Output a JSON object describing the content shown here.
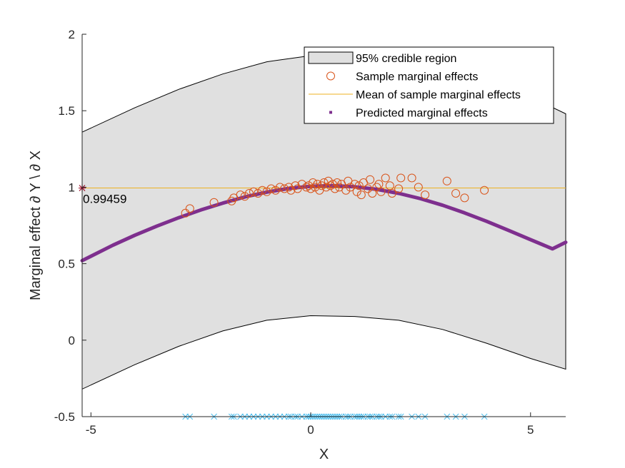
{
  "chart_data": {
    "type": "scatter",
    "xlabel": "X",
    "ylabel": "Marginal effect ∂ Y \\ ∂ X",
    "xlim": [
      -5.2,
      5.8
    ],
    "ylim": [
      -0.5,
      2
    ],
    "xticks": [
      -5,
      0,
      5
    ],
    "xtick_labels": [
      "-5",
      "0",
      "5"
    ],
    "yticks": [
      -0.5,
      0,
      0.5,
      1,
      1.5,
      2
    ],
    "ytick_labels": [
      "-0.5",
      "0",
      "0.5",
      "1",
      "1.5",
      "2"
    ],
    "grid": false,
    "legend_position": "top-right",
    "legend": [
      "95% credible region",
      "Sample marginal effects",
      "Mean of sample marginal effects",
      "Predicted marginal effects"
    ],
    "colors": {
      "region_fill": "#e0e0e0",
      "region_edge": "#000000",
      "sample": "#d95319",
      "mean": "#edb120",
      "predicted": "#7e2f8e",
      "rug": "#4dbeee",
      "annotation_marker": "#a2142f",
      "axis": "#262626"
    },
    "credible_region": {
      "x": [
        -5.2,
        -4,
        -3,
        -2,
        -1,
        0,
        1,
        2,
        3,
        4,
        5,
        5.8
      ],
      "upper": [
        1.36,
        1.52,
        1.64,
        1.74,
        1.82,
        1.86,
        1.87,
        1.85,
        1.8,
        1.71,
        1.59,
        1.48
      ],
      "lower": [
        -0.32,
        -0.16,
        -0.04,
        0.06,
        0.13,
        0.16,
        0.155,
        0.13,
        0.07,
        -0.02,
        -0.12,
        -0.19
      ]
    },
    "predicted": {
      "x": [
        -5.2,
        -4.5,
        -4,
        -3.5,
        -3,
        -2.5,
        -2,
        -1.5,
        -1,
        -0.5,
        0,
        0.5,
        1,
        1.5,
        2,
        2.5,
        3,
        3.5,
        4,
        4.5,
        5,
        5.5,
        5.8
      ],
      "y": [
        0.52,
        0.621,
        0.686,
        0.746,
        0.801,
        0.851,
        0.896,
        0.936,
        0.968,
        0.992,
        1.006,
        1.01,
        1.003,
        0.986,
        0.96,
        0.925,
        0.882,
        0.832,
        0.777,
        0.718,
        0.657,
        0.597,
        0.64
      ]
    },
    "mean_effect": 0.99459,
    "annotation": {
      "x": -5.2,
      "y": 0.99459,
      "label": "0.99459"
    },
    "samples": [
      {
        "x": -2.85,
        "y": 0.83
      },
      {
        "x": -2.75,
        "y": 0.86
      },
      {
        "x": -2.2,
        "y": 0.9
      },
      {
        "x": -1.8,
        "y": 0.91
      },
      {
        "x": -1.75,
        "y": 0.93
      },
      {
        "x": -1.6,
        "y": 0.95
      },
      {
        "x": -1.5,
        "y": 0.94
      },
      {
        "x": -1.4,
        "y": 0.96
      },
      {
        "x": -1.3,
        "y": 0.97
      },
      {
        "x": -1.2,
        "y": 0.96
      },
      {
        "x": -1.1,
        "y": 0.98
      },
      {
        "x": -1.0,
        "y": 0.97
      },
      {
        "x": -0.9,
        "y": 0.99
      },
      {
        "x": -0.8,
        "y": 0.98
      },
      {
        "x": -0.7,
        "y": 1.0
      },
      {
        "x": -0.6,
        "y": 0.99
      },
      {
        "x": -0.5,
        "y": 1.0
      },
      {
        "x": -0.45,
        "y": 0.98
      },
      {
        "x": -0.35,
        "y": 1.01
      },
      {
        "x": -0.3,
        "y": 0.99
      },
      {
        "x": -0.2,
        "y": 1.02
      },
      {
        "x": -0.1,
        "y": 1.0
      },
      {
        "x": -0.05,
        "y": 1.01
      },
      {
        "x": 0.0,
        "y": 0.99
      },
      {
        "x": 0.05,
        "y": 1.03
      },
      {
        "x": 0.1,
        "y": 1.0
      },
      {
        "x": 0.15,
        "y": 1.02
      },
      {
        "x": 0.2,
        "y": 0.98
      },
      {
        "x": 0.25,
        "y": 1.01
      },
      {
        "x": 0.3,
        "y": 1.03
      },
      {
        "x": 0.35,
        "y": 1.0
      },
      {
        "x": 0.4,
        "y": 1.04
      },
      {
        "x": 0.45,
        "y": 1.01
      },
      {
        "x": 0.5,
        "y": 1.02
      },
      {
        "x": 0.55,
        "y": 0.99
      },
      {
        "x": 0.6,
        "y": 1.03
      },
      {
        "x": 0.65,
        "y": 1.0
      },
      {
        "x": 0.7,
        "y": 1.02
      },
      {
        "x": 0.8,
        "y": 0.98
      },
      {
        "x": 0.85,
        "y": 1.04
      },
      {
        "x": 0.9,
        "y": 1.0
      },
      {
        "x": 1.0,
        "y": 1.02
      },
      {
        "x": 1.05,
        "y": 0.97
      },
      {
        "x": 1.1,
        "y": 1.01
      },
      {
        "x": 1.15,
        "y": 0.95
      },
      {
        "x": 1.2,
        "y": 1.03
      },
      {
        "x": 1.3,
        "y": 0.99
      },
      {
        "x": 1.35,
        "y": 1.05
      },
      {
        "x": 1.4,
        "y": 0.96
      },
      {
        "x": 1.5,
        "y": 1.0
      },
      {
        "x": 1.55,
        "y": 1.02
      },
      {
        "x": 1.6,
        "y": 0.97
      },
      {
        "x": 1.7,
        "y": 1.06
      },
      {
        "x": 1.8,
        "y": 1.01
      },
      {
        "x": 1.85,
        "y": 0.96
      },
      {
        "x": 2.0,
        "y": 0.99
      },
      {
        "x": 2.05,
        "y": 1.06
      },
      {
        "x": 2.3,
        "y": 1.06
      },
      {
        "x": 2.45,
        "y": 1.0
      },
      {
        "x": 2.6,
        "y": 0.95
      },
      {
        "x": 3.1,
        "y": 1.04
      },
      {
        "x": 3.3,
        "y": 0.96
      },
      {
        "x": 3.5,
        "y": 0.93
      },
      {
        "x": 3.95,
        "y": 0.98
      }
    ],
    "rug_x": [
      -2.85,
      -2.75,
      -2.2,
      -1.8,
      -1.75,
      -1.6,
      -1.5,
      -1.4,
      -1.3,
      -1.2,
      -1.1,
      -1.0,
      -0.9,
      -0.8,
      -0.7,
      -0.6,
      -0.5,
      -0.45,
      -0.35,
      -0.3,
      -0.2,
      -0.1,
      -0.05,
      0.0,
      0.05,
      0.1,
      0.15,
      0.2,
      0.25,
      0.3,
      0.35,
      0.4,
      0.45,
      0.5,
      0.55,
      0.6,
      0.65,
      0.7,
      0.8,
      0.85,
      0.9,
      1.0,
      1.05,
      1.1,
      1.15,
      1.2,
      1.3,
      1.35,
      1.4,
      1.5,
      1.55,
      1.6,
      1.7,
      1.8,
      1.85,
      2.0,
      2.05,
      2.3,
      2.45,
      2.6,
      3.1,
      3.3,
      3.5,
      3.95
    ]
  }
}
